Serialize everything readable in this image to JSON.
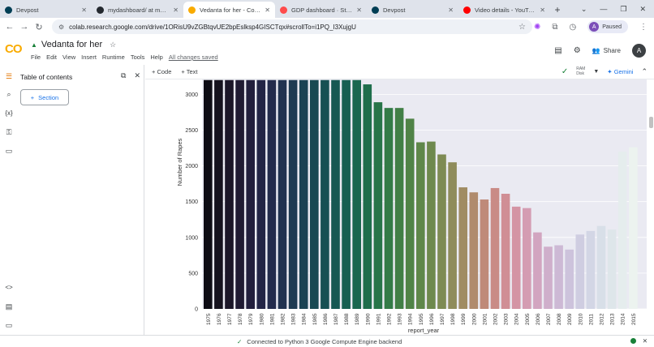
{
  "browser": {
    "tabs": [
      {
        "title": "Devpost",
        "color": "#003e54"
      },
      {
        "title": "mydashboard/ at main · ara",
        "color": "#24292f"
      },
      {
        "title": "Vedanta for her - Colab",
        "color": "#f9ab00"
      },
      {
        "title": "GDP dashboard · Streamlit",
        "color": "#ff4b4b"
      },
      {
        "title": "Devpost",
        "color": "#003e54"
      },
      {
        "title": "Video details - YouTube St",
        "color": "#ff0000"
      }
    ],
    "url": "colab.research.google.com/drive/1ORisU9vZGBtqvUE2bpEslksp4GISCTqx#scrollTo=i1PQ_I3XujgU",
    "profile_status": "Paused",
    "profile_initial": "A"
  },
  "colab": {
    "logo": "CO",
    "notebook_title": "Vedanta for her",
    "menu": [
      "File",
      "Edit",
      "View",
      "Insert",
      "Runtime",
      "Tools",
      "Help"
    ],
    "save_status": "All changes saved",
    "share_label": "Share",
    "account_initial": "A",
    "toolbar": {
      "code_label": "+ Code",
      "text_label": "+ Text",
      "ram_label": "RAM",
      "disk_label": "Disk",
      "gemini_label": "Gemini"
    },
    "toc": {
      "title": "Table of contents",
      "section_button": "Section"
    },
    "status_message": "Connected to Python 3 Google Compute Engine backend"
  },
  "chart_data": {
    "type": "bar",
    "xlabel": "report_year",
    "ylabel": "Number of Rapes",
    "ylim": [
      0,
      3200
    ],
    "yticks": [
      0,
      500,
      1000,
      1500,
      2000,
      2500,
      3000
    ],
    "categories": [
      "1975",
      "1976",
      "1977",
      "1978",
      "1979",
      "1980",
      "1981",
      "1982",
      "1983",
      "1984",
      "1985",
      "1986",
      "1987",
      "1988",
      "1989",
      "1990",
      "1991",
      "1992",
      "1993",
      "1994",
      "1995",
      "1996",
      "1997",
      "1998",
      "1999",
      "2000",
      "2001",
      "2002",
      "2003",
      "2004",
      "2005",
      "2006",
      "2007",
      "2008",
      "2009",
      "2010",
      "2011",
      "2012",
      "2013",
      "2014",
      "2015"
    ],
    "values": [
      3200,
      3200,
      3200,
      3200,
      3200,
      3200,
      3200,
      3200,
      3200,
      3200,
      3200,
      3200,
      3200,
      3200,
      3200,
      3140,
      2890,
      2810,
      2810,
      2660,
      2330,
      2340,
      2160,
      2050,
      1700,
      1630,
      1530,
      1690,
      1610,
      1430,
      1410,
      1070,
      870,
      890,
      830,
      1040,
      1090,
      1160,
      1110,
      2200,
      2260
    ],
    "colors": [
      "#0d0c14",
      "#15121e",
      "#1b1628",
      "#201b33",
      "#221f3d",
      "#232546",
      "#232b4c",
      "#213250",
      "#1e3a52",
      "#1b4253",
      "#194953",
      "#175053",
      "#165853",
      "#175f52",
      "#1a674f",
      "#1f6e4c",
      "#287549",
      "#337b47",
      "#417f46",
      "#508347",
      "#5f874a",
      "#6e894e",
      "#7e8b54",
      "#8f8c5b",
      "#a08c63",
      "#b08b6d",
      "#bf8a79",
      "#c98b86",
      "#d08e95",
      "#d494a4",
      "#d49cb2",
      "#d2a5c0",
      "#cfafcb",
      "#cdb9d5",
      "#cdc3dc",
      "#cfcde1",
      "#d3d6e5",
      "#d8dfe8",
      "#dee6ea",
      "#e5eded",
      "#ecf3ef"
    ]
  }
}
